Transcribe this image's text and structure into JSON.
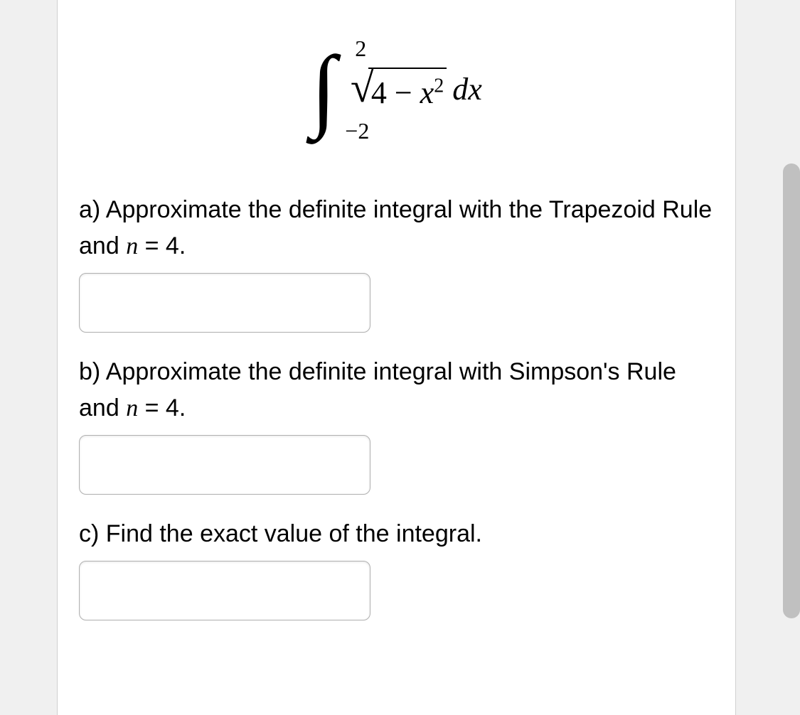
{
  "integral": {
    "upper_limit": "2",
    "lower_limit": "−2",
    "radicand_part1": "4 − ",
    "radicand_var": "x",
    "radicand_exp": "2",
    "differential": "dx"
  },
  "questions": {
    "a": {
      "label": "a) Approximate the definite integral with the Trapezoid Rule and ",
      "var": "n",
      "equals": " = 4."
    },
    "b": {
      "label": "b) Approximate the definite integral with Simpson's Rule and ",
      "var": "n",
      "equals": " = 4."
    },
    "c": {
      "label": "c) Find the exact value of the integral."
    }
  },
  "styles": {
    "background_color": "#ffffff",
    "text_color": "#000000",
    "border_color": "#b0b0b0",
    "scrollbar_color": "#c0c0c0",
    "question_fontsize": 34,
    "integral_fontsize": 48,
    "input_width": 410,
    "input_height": 84,
    "input_border_radius": 10
  }
}
